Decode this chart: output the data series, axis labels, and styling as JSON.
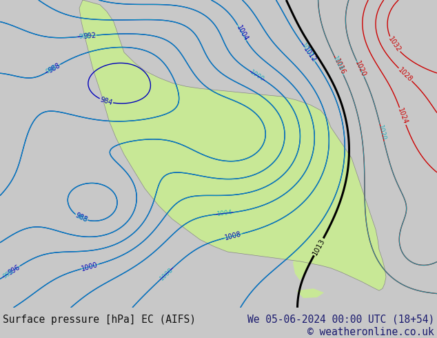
{
  "bottom_left_text": "Surface pressure [hPa] EC (AIFS)",
  "bottom_right_text1": "We 05-06-2024 00:00 UTC (18+54)",
  "bottom_right_text2": "© weatheronline.co.uk",
  "bg_color": "#c8c8c8",
  "map_ocean_color": "#e8e8e8",
  "land_color": "#c8e896",
  "blue_color": "#0000bb",
  "red_color": "#cc0000",
  "black_color": "#000000",
  "cyan_color": "#00aabb",
  "text_dark_color": "#1a1a6e",
  "text_left_color": "#111111"
}
